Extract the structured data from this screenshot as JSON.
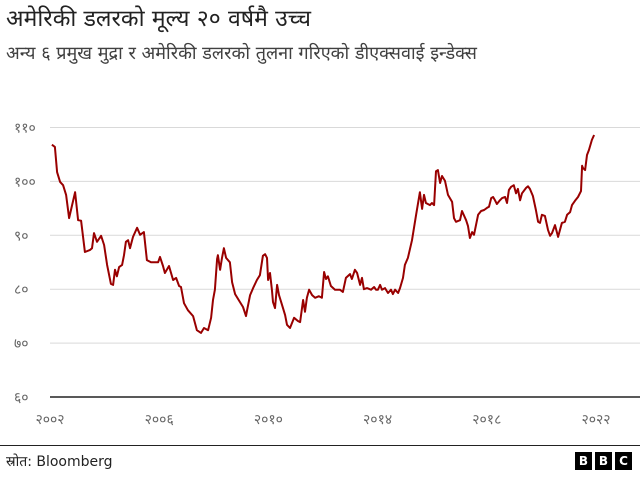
{
  "header": {
    "title": "अमेरिकी डलरको मूल्य २० वर्षमै उच्च",
    "subtitle": "अन्य ६ प्रमुख मुद्रा र अमेरिकी डलरको तुलना गरिएको डीएक्सवाई इन्डेक्स"
  },
  "footer": {
    "source": "स्रोत: Bloomberg",
    "logo": [
      "B",
      "B",
      "C"
    ]
  },
  "chart_data": {
    "type": "line",
    "title": "अमेरिकी डलरको मूल्य २० वर्षमै उच्च",
    "xlabel": "",
    "ylabel": "",
    "xlim": [
      2002,
      2022
    ],
    "ylim": [
      60,
      110
    ],
    "grid": true,
    "line_color": "#990000",
    "y_ticks": [
      {
        "value": 110,
        "label": "११०"
      },
      {
        "value": 100,
        "label": "१००"
      },
      {
        "value": 90,
        "label": "९०"
      },
      {
        "value": 80,
        "label": "८०"
      },
      {
        "value": 70,
        "label": "७०"
      },
      {
        "value": 60,
        "label": "६०"
      }
    ],
    "x_ticks": [
      {
        "value": 2002,
        "label": "२००२"
      },
      {
        "value": 2006,
        "label": "२००६"
      },
      {
        "value": 2010,
        "label": "२०१०"
      },
      {
        "value": 2014,
        "label": "२०१४"
      },
      {
        "value": 2018,
        "label": "२०१८"
      },
      {
        "value": 2022,
        "label": "२०२२"
      }
    ],
    "series": [
      {
        "name": "DXY",
        "points": [
          [
            2002.07,
            106.8
          ],
          [
            2002.18,
            106.4
          ],
          [
            2002.26,
            101.7
          ],
          [
            2002.37,
            99.9
          ],
          [
            2002.48,
            99.3
          ],
          [
            2002.59,
            97.5
          ],
          [
            2002.7,
            93.2
          ],
          [
            2002.81,
            95.6
          ],
          [
            2002.92,
            98.0
          ],
          [
            2003.03,
            92.8
          ],
          [
            2003.14,
            92.7
          ],
          [
            2003.28,
            86.9
          ],
          [
            2003.47,
            87.3
          ],
          [
            2003.54,
            87.6
          ],
          [
            2003.61,
            90.4
          ],
          [
            2003.72,
            88.8
          ],
          [
            2003.87,
            89.9
          ],
          [
            2003.98,
            88.2
          ],
          [
            2004.09,
            84.5
          ],
          [
            2004.23,
            81.0
          ],
          [
            2004.31,
            80.8
          ],
          [
            2004.38,
            83.6
          ],
          [
            2004.45,
            82.4
          ],
          [
            2004.53,
            84.1
          ],
          [
            2004.64,
            84.5
          ],
          [
            2004.71,
            86.3
          ],
          [
            2004.78,
            88.8
          ],
          [
            2004.86,
            89.1
          ],
          [
            2004.93,
            87.6
          ],
          [
            2005.04,
            89.7
          ],
          [
            2005.19,
            91.4
          ],
          [
            2005.3,
            90.1
          ],
          [
            2005.44,
            90.6
          ],
          [
            2005.55,
            85.4
          ],
          [
            2005.7,
            85.0
          ],
          [
            2005.96,
            85.0
          ],
          [
            2006.03,
            86.0
          ],
          [
            2006.14,
            84.3
          ],
          [
            2006.21,
            83.0
          ],
          [
            2006.36,
            84.3
          ],
          [
            2006.51,
            81.7
          ],
          [
            2006.62,
            82.1
          ],
          [
            2006.73,
            80.6
          ],
          [
            2006.8,
            80.4
          ],
          [
            2006.91,
            77.4
          ],
          [
            2007.05,
            76.1
          ],
          [
            2007.24,
            75.0
          ],
          [
            2007.38,
            72.4
          ],
          [
            2007.53,
            71.9
          ],
          [
            2007.64,
            72.8
          ],
          [
            2007.79,
            72.4
          ],
          [
            2007.9,
            74.7
          ],
          [
            2007.97,
            78.0
          ],
          [
            2008.04,
            79.9
          ],
          [
            2008.12,
            85.6
          ],
          [
            2008.15,
            86.3
          ],
          [
            2008.23,
            83.6
          ],
          [
            2008.3,
            85.8
          ],
          [
            2008.37,
            87.6
          ],
          [
            2008.45,
            85.8
          ],
          [
            2008.59,
            85.0
          ],
          [
            2008.67,
            81.3
          ],
          [
            2008.78,
            79.1
          ],
          [
            2008.96,
            77.6
          ],
          [
            2009.07,
            76.7
          ],
          [
            2009.18,
            75.0
          ],
          [
            2009.22,
            76.1
          ],
          [
            2009.33,
            78.9
          ],
          [
            2009.44,
            80.2
          ],
          [
            2009.58,
            81.7
          ],
          [
            2009.69,
            82.6
          ],
          [
            2009.8,
            86.2
          ],
          [
            2009.88,
            86.5
          ],
          [
            2009.95,
            85.8
          ],
          [
            2009.99,
            81.7
          ],
          [
            2010.06,
            83.0
          ],
          [
            2010.13,
            79.9
          ],
          [
            2010.17,
            77.6
          ],
          [
            2010.24,
            76.5
          ],
          [
            2010.32,
            80.8
          ],
          [
            2010.39,
            78.9
          ],
          [
            2010.5,
            77.1
          ],
          [
            2010.61,
            75.2
          ],
          [
            2010.68,
            73.4
          ],
          [
            2010.79,
            72.8
          ],
          [
            2010.94,
            74.7
          ],
          [
            2011.08,
            74.1
          ],
          [
            2011.16,
            73.9
          ],
          [
            2011.27,
            78.0
          ],
          [
            2011.34,
            75.8
          ],
          [
            2011.41,
            78.4
          ],
          [
            2011.49,
            79.9
          ],
          [
            2011.6,
            78.9
          ],
          [
            2011.71,
            78.4
          ],
          [
            2011.85,
            78.7
          ],
          [
            2011.96,
            78.4
          ],
          [
            2012.04,
            83.2
          ],
          [
            2012.11,
            81.9
          ],
          [
            2012.18,
            82.4
          ],
          [
            2012.29,
            80.6
          ],
          [
            2012.44,
            79.9
          ],
          [
            2012.62,
            79.9
          ],
          [
            2012.73,
            79.5
          ],
          [
            2012.84,
            82.1
          ],
          [
            2012.99,
            82.8
          ],
          [
            2013.06,
            81.9
          ],
          [
            2013.17,
            83.6
          ],
          [
            2013.25,
            83.0
          ],
          [
            2013.36,
            80.8
          ],
          [
            2013.43,
            82.1
          ],
          [
            2013.5,
            80.0
          ],
          [
            2013.61,
            80.2
          ],
          [
            2013.76,
            79.9
          ],
          [
            2013.87,
            80.4
          ],
          [
            2013.94,
            79.9
          ],
          [
            2014.01,
            79.9
          ],
          [
            2014.09,
            80.8
          ],
          [
            2014.16,
            79.9
          ],
          [
            2014.27,
            80.2
          ],
          [
            2014.38,
            79.3
          ],
          [
            2014.49,
            79.9
          ],
          [
            2014.56,
            79.1
          ],
          [
            2014.64,
            79.9
          ],
          [
            2014.75,
            79.3
          ],
          [
            2014.82,
            80.2
          ],
          [
            2014.93,
            82.1
          ],
          [
            2015.0,
            84.5
          ],
          [
            2015.11,
            85.8
          ],
          [
            2015.26,
            89.1
          ],
          [
            2015.41,
            93.8
          ],
          [
            2015.55,
            98.0
          ],
          [
            2015.63,
            94.9
          ],
          [
            2015.7,
            97.5
          ],
          [
            2015.77,
            96.0
          ],
          [
            2015.92,
            95.6
          ],
          [
            2015.99,
            96.0
          ],
          [
            2016.07,
            95.6
          ],
          [
            2016.14,
            101.9
          ],
          [
            2016.21,
            102.1
          ],
          [
            2016.29,
            99.7
          ],
          [
            2016.36,
            101.0
          ],
          [
            2016.47,
            100.1
          ],
          [
            2016.58,
            97.5
          ],
          [
            2016.73,
            96.2
          ],
          [
            2016.8,
            93.2
          ],
          [
            2016.87,
            92.5
          ],
          [
            2017.02,
            92.8
          ],
          [
            2017.09,
            94.5
          ],
          [
            2017.24,
            92.8
          ],
          [
            2017.31,
            91.7
          ],
          [
            2017.38,
            89.5
          ],
          [
            2017.46,
            90.6
          ],
          [
            2017.53,
            90.1
          ],
          [
            2017.68,
            93.8
          ],
          [
            2017.79,
            94.5
          ],
          [
            2017.9,
            94.7
          ],
          [
            2018.01,
            95.1
          ],
          [
            2018.08,
            95.3
          ],
          [
            2018.16,
            96.9
          ],
          [
            2018.23,
            97.1
          ],
          [
            2018.3,
            96.5
          ],
          [
            2018.37,
            95.8
          ],
          [
            2018.48,
            96.5
          ],
          [
            2018.56,
            96.9
          ],
          [
            2018.67,
            97.1
          ],
          [
            2018.74,
            96.0
          ],
          [
            2018.81,
            98.4
          ],
          [
            2018.89,
            99.0
          ],
          [
            2018.99,
            99.3
          ],
          [
            2019.07,
            97.8
          ],
          [
            2019.14,
            98.6
          ],
          [
            2019.22,
            96.5
          ],
          [
            2019.29,
            97.8
          ],
          [
            2019.44,
            98.8
          ],
          [
            2019.51,
            99.1
          ],
          [
            2019.58,
            98.6
          ],
          [
            2019.69,
            97.3
          ],
          [
            2019.8,
            94.7
          ],
          [
            2019.88,
            92.5
          ],
          [
            2019.95,
            92.3
          ],
          [
            2020.02,
            93.8
          ],
          [
            2020.13,
            93.6
          ],
          [
            2020.24,
            91.0
          ],
          [
            2020.32,
            89.9
          ],
          [
            2020.39,
            90.4
          ],
          [
            2020.5,
            91.9
          ],
          [
            2020.61,
            89.7
          ],
          [
            2020.68,
            91.0
          ],
          [
            2020.75,
            92.3
          ],
          [
            2020.86,
            92.5
          ],
          [
            2020.94,
            93.8
          ],
          [
            2021.05,
            94.3
          ],
          [
            2021.12,
            95.6
          ],
          [
            2021.23,
            96.4
          ],
          [
            2021.34,
            97.1
          ],
          [
            2021.45,
            98.2
          ],
          [
            2021.49,
            102.9
          ],
          [
            2021.52,
            102.5
          ],
          [
            2021.6,
            102.1
          ],
          [
            2021.67,
            104.9
          ],
          [
            2021.74,
            105.8
          ],
          [
            2021.85,
            107.7
          ],
          [
            2021.93,
            108.6
          ]
        ]
      }
    ]
  }
}
